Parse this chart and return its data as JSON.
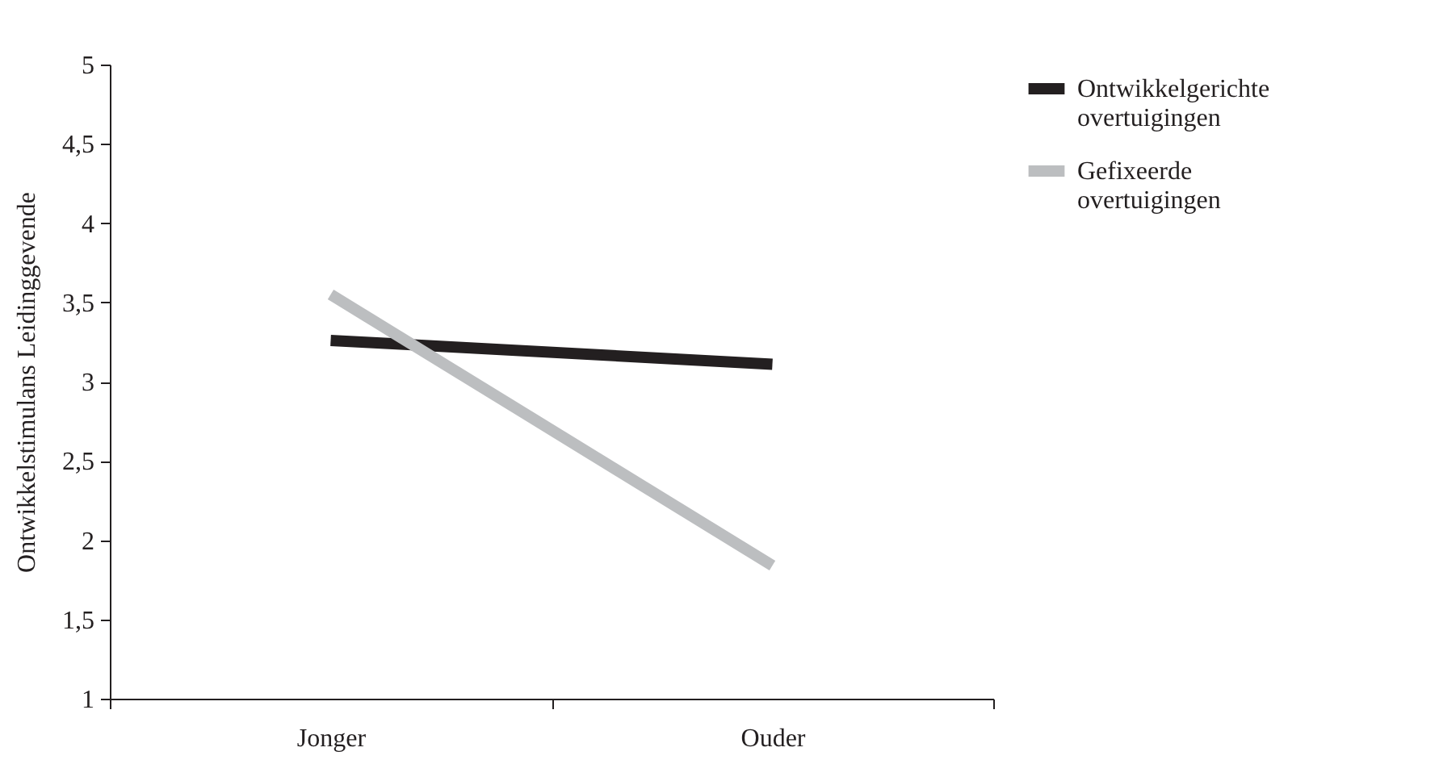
{
  "chart_data": {
    "type": "line",
    "ylabel": "Ontwikkelstimulans Leidinggevende",
    "categories": [
      "Jonger",
      "Ouder"
    ],
    "series": [
      {
        "name": "Ontwikkelgerichte overtuigingen",
        "color": "#231f20",
        "values": [
          3.26,
          3.11
        ]
      },
      {
        "name": "Gefixeerde overtuigingen",
        "color": "#bcbec0",
        "values": [
          3.55,
          1.84
        ]
      }
    ],
    "ylim": [
      1,
      5
    ],
    "yticks": [
      1,
      {
        "value": 1.5,
        "label": "1,5"
      },
      2,
      {
        "value": 2.5,
        "label": "2,5"
      },
      3,
      {
        "value": 3.5,
        "label": "3,5"
      },
      4,
      {
        "value": 4.5,
        "label": "4,5"
      },
      5
    ],
    "legend": "right",
    "grid": false,
    "marker": "none",
    "line_style": "solid"
  }
}
